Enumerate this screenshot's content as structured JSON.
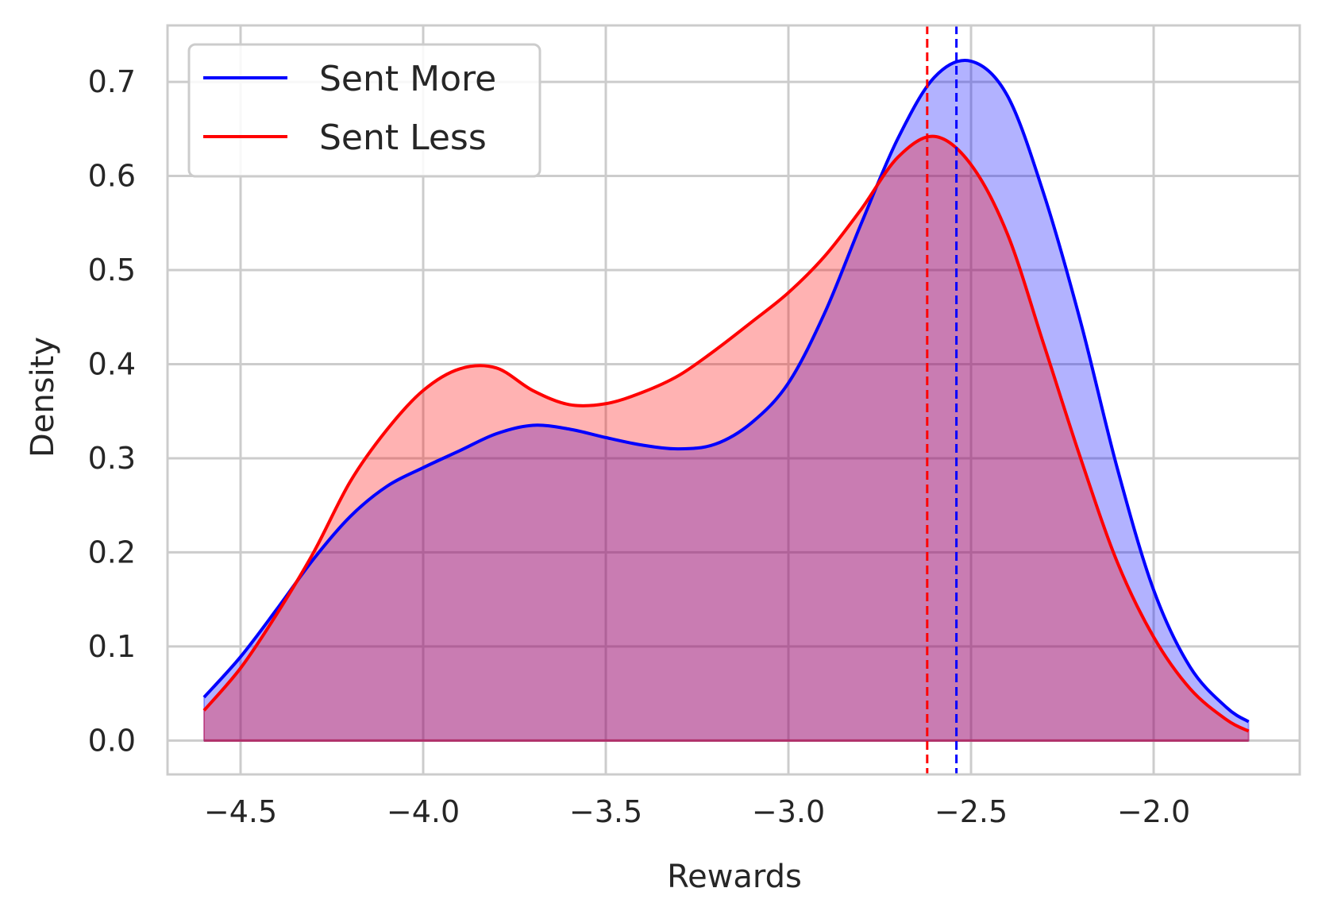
{
  "chart_data": {
    "type": "area",
    "title": "",
    "xlabel": "Rewards",
    "ylabel": "Density",
    "xlim": [
      -4.7,
      -1.6
    ],
    "ylim": [
      -0.036,
      0.76
    ],
    "xticks": [
      -4.5,
      -4.0,
      -3.5,
      -3.0,
      -2.5,
      -2.0
    ],
    "xtick_labels": [
      "−4.5",
      "−4.0",
      "−3.5",
      "−3.0",
      "−2.5",
      "−2.0"
    ],
    "yticks": [
      0.0,
      0.1,
      0.2,
      0.3,
      0.4,
      0.5,
      0.6,
      0.7
    ],
    "ytick_labels": [
      "0.0",
      "0.1",
      "0.2",
      "0.3",
      "0.4",
      "0.5",
      "0.6",
      "0.7"
    ],
    "grid": true,
    "legend_position": "top-left",
    "series": [
      {
        "name": "Sent More",
        "color": "#0000ff",
        "fill": "#0000ff",
        "mean": -2.54,
        "x": [
          -4.6,
          -4.5,
          -4.4,
          -4.3,
          -4.2,
          -4.1,
          -4.0,
          -3.9,
          -3.8,
          -3.7,
          -3.6,
          -3.5,
          -3.4,
          -3.3,
          -3.2,
          -3.1,
          -3.0,
          -2.9,
          -2.8,
          -2.7,
          -2.6,
          -2.5,
          -2.4,
          -2.3,
          -2.2,
          -2.1,
          -2.0,
          -1.9,
          -1.8,
          -1.74
        ],
        "y": [
          0.046,
          0.089,
          0.14,
          0.193,
          0.238,
          0.27,
          0.29,
          0.308,
          0.326,
          0.335,
          0.331,
          0.322,
          0.314,
          0.31,
          0.315,
          0.338,
          0.38,
          0.455,
          0.55,
          0.64,
          0.705,
          0.722,
          0.685,
          0.58,
          0.445,
          0.29,
          0.16,
          0.078,
          0.035,
          0.02
        ]
      },
      {
        "name": "Sent Less",
        "color": "#ff0000",
        "fill": "#ff0000",
        "mean": -2.62,
        "x": [
          -4.6,
          -4.5,
          -4.4,
          -4.3,
          -4.2,
          -4.1,
          -4.0,
          -3.9,
          -3.8,
          -3.7,
          -3.6,
          -3.5,
          -3.4,
          -3.3,
          -3.2,
          -3.1,
          -3.0,
          -2.9,
          -2.8,
          -2.7,
          -2.6,
          -2.5,
          -2.4,
          -2.3,
          -2.2,
          -2.1,
          -2.0,
          -1.9,
          -1.8,
          -1.74
        ],
        "y": [
          0.032,
          0.077,
          0.135,
          0.2,
          0.275,
          0.33,
          0.372,
          0.395,
          0.396,
          0.372,
          0.357,
          0.358,
          0.37,
          0.388,
          0.415,
          0.445,
          0.476,
          0.515,
          0.565,
          0.62,
          0.642,
          0.612,
          0.538,
          0.42,
          0.3,
          0.19,
          0.11,
          0.055,
          0.022,
          0.01
        ]
      }
    ]
  }
}
